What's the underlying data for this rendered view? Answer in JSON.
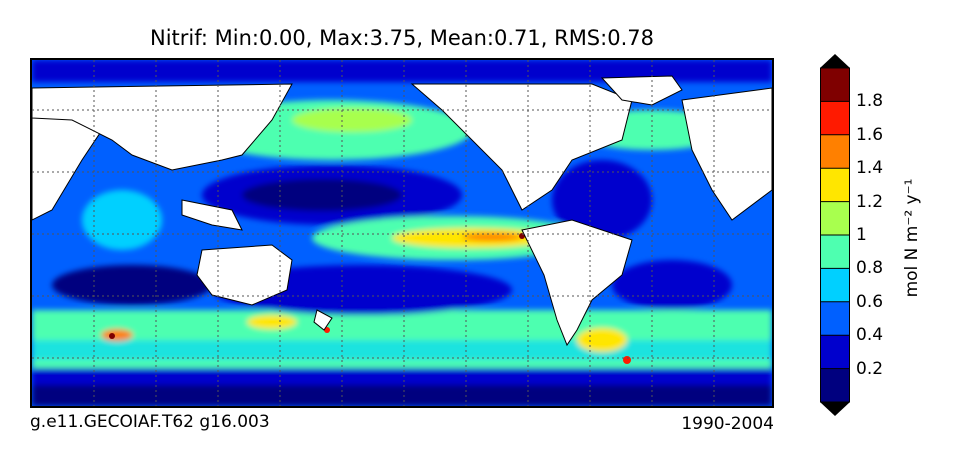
{
  "title": "Nitrif: Min:0.00, Max:3.75, Mean:0.71, RMS:0.78",
  "footer": {
    "left": "g.e11.GECOIAF.T62 g16.003",
    "right": "1990-2004"
  },
  "colorbar": {
    "unit": "mol N m⁻² y⁻¹",
    "levels": [
      "0.2",
      "0.4",
      "0.6",
      "0.8",
      "1",
      "1.2",
      "1.4",
      "1.6",
      "1.8"
    ],
    "colors": [
      "#00007f",
      "#0000cd",
      "#0060ff",
      "#00d0ff",
      "#4effb0",
      "#a8ff4e",
      "#ffe600",
      "#ff8000",
      "#ff1a00",
      "#7f0000"
    ],
    "extend": "both"
  },
  "map": {
    "land_color": "#ffffff",
    "grid": "dotted"
  }
}
